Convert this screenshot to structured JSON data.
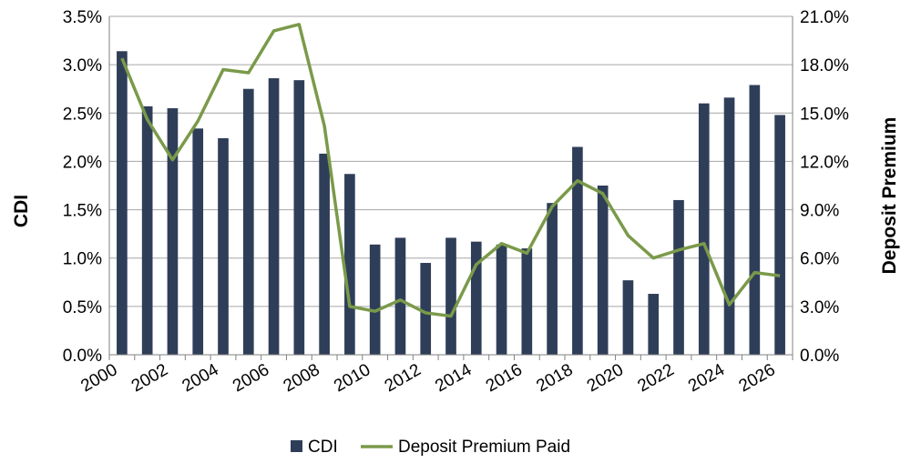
{
  "chart_data": {
    "type": "bar",
    "x": [
      2000,
      2001,
      2002,
      2003,
      2004,
      2005,
      2006,
      2007,
      2008,
      2009,
      2010,
      2011,
      2012,
      2013,
      2014,
      2015,
      2016,
      2017,
      2018,
      2019,
      2020,
      2021,
      2022,
      2023,
      2024,
      2025,
      2026
    ],
    "x_tick_labels": [
      "2000",
      "2002",
      "2004",
      "2006",
      "2008",
      "2010",
      "2012",
      "2014",
      "2016",
      "2018",
      "2020",
      "2022",
      "2024",
      "2026"
    ],
    "series": [
      {
        "name": "CDI",
        "type": "bar",
        "axis": "left",
        "color": "#2f3e58",
        "values": [
          3.14,
          2.57,
          2.55,
          2.34,
          2.24,
          2.75,
          2.86,
          2.84,
          2.08,
          1.87,
          1.14,
          1.21,
          0.95,
          1.21,
          1.17,
          1.14,
          1.1,
          1.57,
          2.15,
          1.75,
          0.77,
          0.63,
          1.6,
          2.6,
          2.66,
          2.79,
          2.48
        ]
      },
      {
        "name": "Deposit Premium Paid",
        "type": "line",
        "axis": "right",
        "color": "#7a9a4a",
        "values": [
          18.4,
          14.6,
          12.1,
          14.5,
          17.7,
          17.5,
          20.1,
          20.5,
          14.2,
          3.0,
          2.7,
          3.4,
          2.6,
          2.4,
          5.6,
          6.9,
          6.3,
          9.2,
          10.8,
          10.0,
          7.4,
          6.0,
          6.5,
          6.9,
          3.1,
          5.1,
          4.9
        ]
      }
    ],
    "y_left": {
      "label": "CDI",
      "ylim": [
        0,
        3.5
      ],
      "ticks": [
        "0.0%",
        "0.5%",
        "1.0%",
        "1.5%",
        "2.0%",
        "2.5%",
        "3.0%",
        "3.5%"
      ]
    },
    "y_right": {
      "label": "Deposit Premium",
      "ylim": [
        0,
        21
      ],
      "ticks": [
        "0.0%",
        "3.0%",
        "6.0%",
        "9.0%",
        "12.0%",
        "15.0%",
        "18.0%",
        "21.0%"
      ]
    },
    "grid": true,
    "legend_position": "bottom-center"
  }
}
